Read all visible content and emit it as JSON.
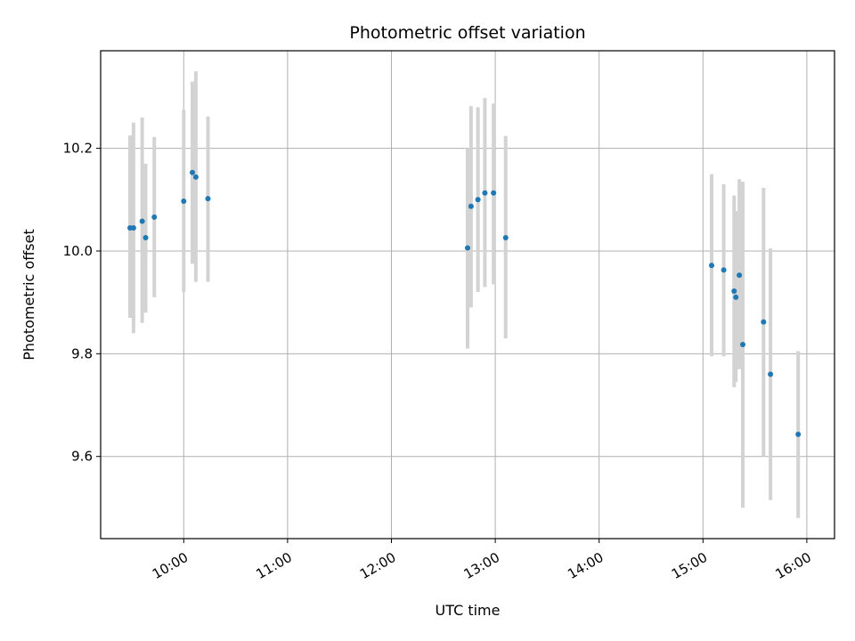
{
  "chart_data": {
    "type": "scatter",
    "title": "Photometric offset variation",
    "xlabel": "UTC time",
    "ylabel": "Photometric offset",
    "x_ticks": [
      "10:00",
      "11:00",
      "12:00",
      "13:00",
      "14:00",
      "15:00",
      "16:00"
    ],
    "y_ticks": [
      "9.6",
      "9.8",
      "10.0",
      "10.2"
    ],
    "xlim": [
      "09:12",
      "16:16"
    ],
    "ylim": [
      9.44,
      10.39
    ],
    "grid": true,
    "colors": {
      "points": "#1f77b4",
      "errorbars": "#d3d3d3",
      "grid": "#b0b0b0"
    },
    "series": [
      {
        "points": [
          {
            "x": "09:29",
            "y": 10.045,
            "ylow": 9.87,
            "yhigh": 10.225
          },
          {
            "x": "09:31",
            "y": 10.045,
            "ylow": 9.84,
            "yhigh": 10.25
          },
          {
            "x": "09:36",
            "y": 10.058,
            "ylow": 9.86,
            "yhigh": 10.26
          },
          {
            "x": "09:38",
            "y": 10.026,
            "ylow": 9.88,
            "yhigh": 10.17
          },
          {
            "x": "09:43",
            "y": 10.066,
            "ylow": 9.91,
            "yhigh": 10.222
          },
          {
            "x": "10:00",
            "y": 10.097,
            "ylow": 9.92,
            "yhigh": 10.275
          },
          {
            "x": "10:05",
            "y": 10.153,
            "ylow": 9.975,
            "yhigh": 10.33
          },
          {
            "x": "10:07",
            "y": 10.144,
            "ylow": 9.94,
            "yhigh": 10.35
          },
          {
            "x": "10:14",
            "y": 10.102,
            "ylow": 9.94,
            "yhigh": 10.262
          },
          {
            "x": "12:44",
            "y": 10.006,
            "ylow": 9.81,
            "yhigh": 10.2
          },
          {
            "x": "12:46",
            "y": 10.087,
            "ylow": 9.89,
            "yhigh": 10.282
          },
          {
            "x": "12:50",
            "y": 10.1,
            "ylow": 9.92,
            "yhigh": 10.28
          },
          {
            "x": "12:54",
            "y": 10.113,
            "ylow": 9.93,
            "yhigh": 10.298
          },
          {
            "x": "12:59",
            "y": 10.113,
            "ylow": 9.935,
            "yhigh": 10.287
          },
          {
            "x": "13:06",
            "y": 10.026,
            "ylow": 9.83,
            "yhigh": 10.224
          },
          {
            "x": "15:05",
            "y": 9.972,
            "ylow": 9.795,
            "yhigh": 10.15
          },
          {
            "x": "15:12",
            "y": 9.963,
            "ylow": 9.795,
            "yhigh": 10.13
          },
          {
            "x": "15:18",
            "y": 9.922,
            "ylow": 9.735,
            "yhigh": 10.108
          },
          {
            "x": "15:19",
            "y": 9.91,
            "ylow": 9.745,
            "yhigh": 10.078
          },
          {
            "x": "15:21",
            "y": 9.953,
            "ylow": 9.77,
            "yhigh": 10.14
          },
          {
            "x": "15:23",
            "y": 9.818,
            "ylow": 9.5,
            "yhigh": 10.135
          },
          {
            "x": "15:35",
            "y": 9.862,
            "ylow": 9.6,
            "yhigh": 10.123
          },
          {
            "x": "15:39",
            "y": 9.76,
            "ylow": 9.515,
            "yhigh": 10.005
          },
          {
            "x": "15:55",
            "y": 9.643,
            "ylow": 9.48,
            "yhigh": 9.805
          }
        ]
      }
    ]
  }
}
